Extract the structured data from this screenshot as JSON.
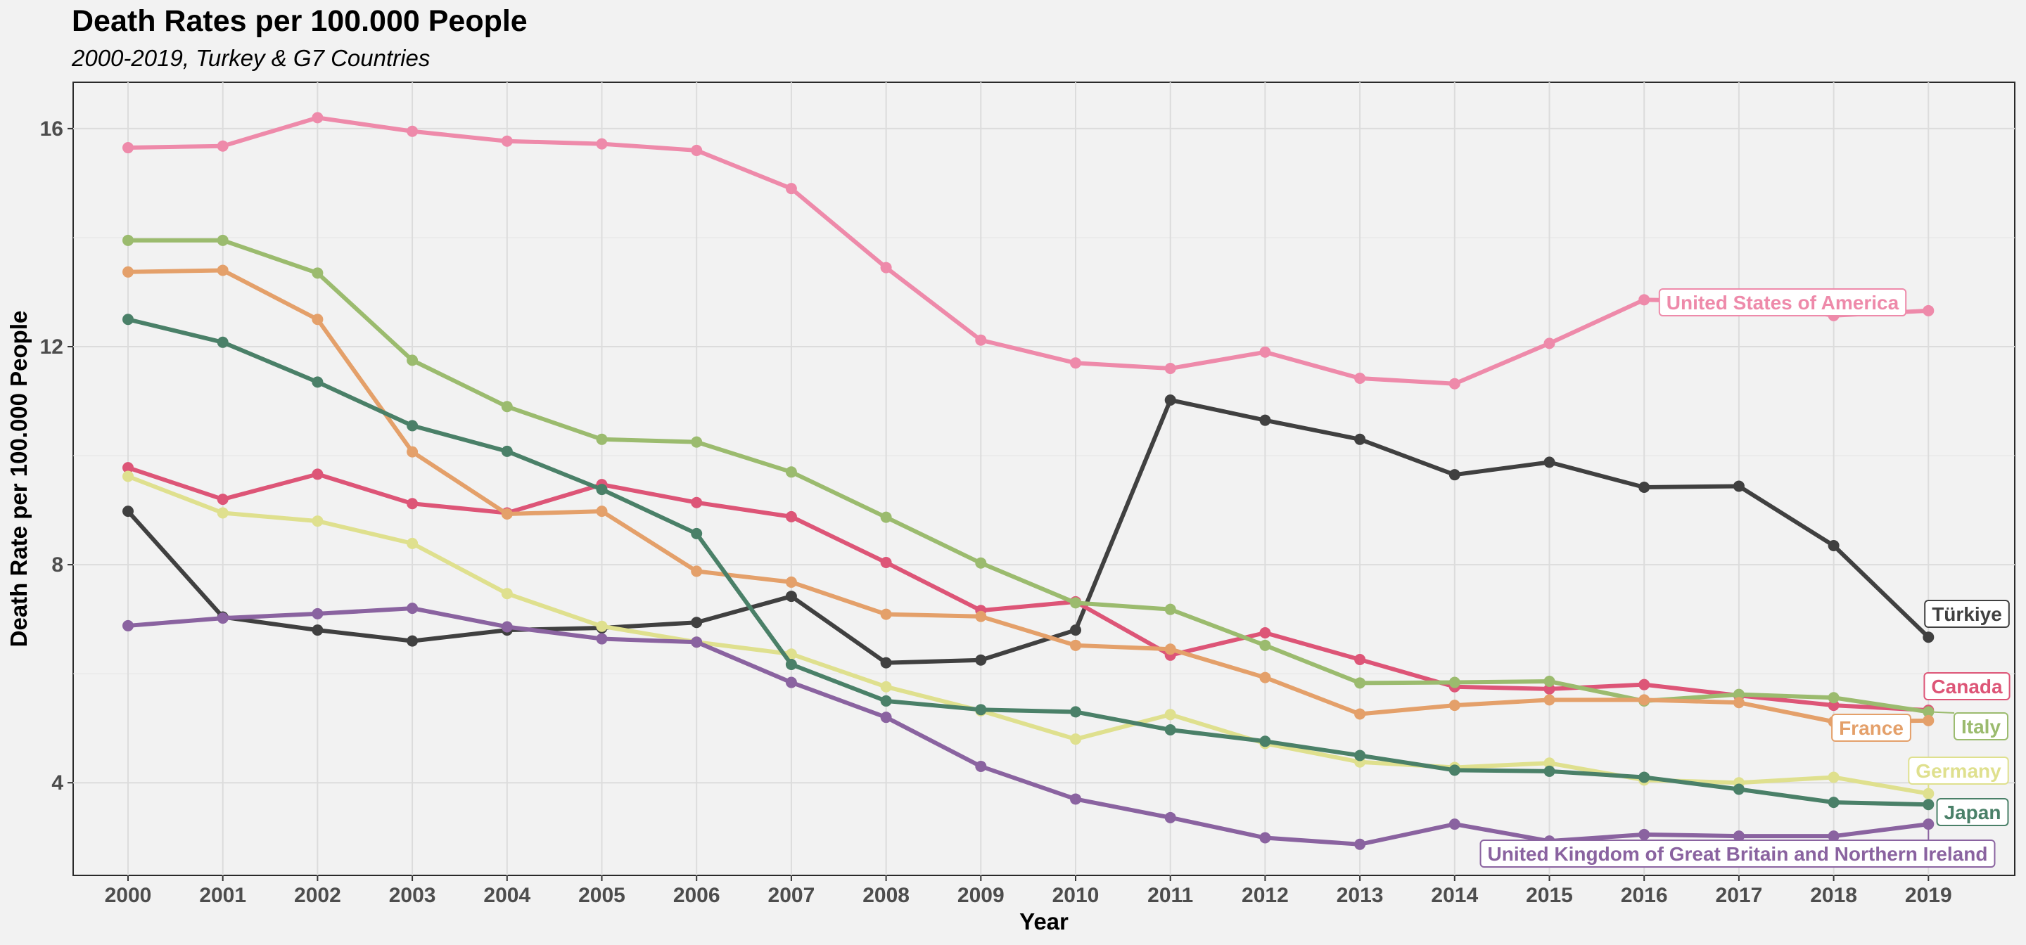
{
  "chart_data": {
    "type": "line",
    "title": "Death Rates per 100.000 People",
    "subtitle": "2000-2019, Turkey & G7 Countries",
    "xlabel": "Year",
    "ylabel": "Death Rate per 100.000 People",
    "x": [
      2000,
      2001,
      2002,
      2003,
      2004,
      2005,
      2006,
      2007,
      2008,
      2009,
      2010,
      2011,
      2012,
      2013,
      2014,
      2015,
      2016,
      2017,
      2018,
      2019
    ],
    "xticks": [
      "2000",
      "2001",
      "2002",
      "2003",
      "2004",
      "2005",
      "2006",
      "2007",
      "2008",
      "2009",
      "2010",
      "2011",
      "2012",
      "2013",
      "2014",
      "2015",
      "2016",
      "2017",
      "2018",
      "2019"
    ],
    "yticks": [
      4,
      8,
      12,
      16
    ],
    "ytick_labels": [
      "4",
      "8",
      "12",
      "16"
    ],
    "ylim": [
      2.3,
      16.85
    ],
    "grid": true,
    "legend": "direct labels at series ends",
    "series": [
      {
        "name": "United States of America",
        "color": "#ee8aaa",
        "values": [
          15.65,
          15.68,
          16.2,
          15.95,
          15.77,
          15.72,
          15.6,
          14.9,
          13.45,
          12.12,
          11.7,
          11.6,
          11.9,
          11.42,
          11.32,
          12.06,
          12.86,
          12.83,
          12.57,
          12.66
        ]
      },
      {
        "name": "Türkiye",
        "color": "#404040",
        "values": [
          8.98,
          7.04,
          6.8,
          6.6,
          6.8,
          6.84,
          6.94,
          7.42,
          6.2,
          6.25,
          6.8,
          11.02,
          10.65,
          10.3,
          9.65,
          9.88,
          9.42,
          9.44,
          8.35,
          6.67
        ]
      },
      {
        "name": "Canada",
        "color": "#dd5577",
        "values": [
          9.78,
          9.2,
          9.66,
          9.12,
          8.95,
          9.47,
          9.14,
          8.88,
          8.04,
          7.16,
          7.32,
          6.34,
          6.75,
          6.26,
          5.76,
          5.72,
          5.8,
          5.6,
          5.42,
          5.33
        ]
      },
      {
        "name": "Italy",
        "color": "#9bbb6e",
        "values": [
          13.95,
          13.95,
          13.35,
          11.75,
          10.9,
          10.3,
          10.25,
          9.7,
          8.87,
          8.03,
          7.3,
          7.18,
          6.52,
          5.83,
          5.84,
          5.86,
          5.5,
          5.62,
          5.56,
          5.3
        ]
      },
      {
        "name": "France",
        "color": "#e4a06a",
        "values": [
          13.37,
          13.4,
          12.5,
          10.07,
          8.93,
          8.98,
          7.88,
          7.68,
          7.09,
          7.05,
          6.52,
          6.45,
          5.93,
          5.26,
          5.42,
          5.52,
          5.52,
          5.47,
          5.12,
          5.14
        ]
      },
      {
        "name": "Germany",
        "color": "#dfe08e",
        "values": [
          9.62,
          8.95,
          8.8,
          8.39,
          7.47,
          6.87,
          6.58,
          6.36,
          5.76,
          5.32,
          4.8,
          5.25,
          4.72,
          4.38,
          4.28,
          4.36,
          4.05,
          4.0,
          4.1,
          3.8
        ]
      },
      {
        "name": "Japan",
        "color": "#4a8068",
        "values": [
          12.5,
          12.08,
          11.35,
          10.55,
          10.08,
          9.38,
          8.57,
          6.17,
          5.5,
          5.34,
          5.3,
          4.97,
          4.76,
          4.5,
          4.23,
          4.21,
          4.1,
          3.88,
          3.64,
          3.6
        ]
      },
      {
        "name": "United Kingdom of Great Britain and Northern Ireland",
        "color": "#8a63a0",
        "values": [
          6.88,
          7.02,
          7.1,
          7.2,
          6.86,
          6.64,
          6.58,
          5.84,
          5.2,
          4.3,
          3.7,
          3.36,
          2.99,
          2.87,
          3.24,
          2.93,
          3.05,
          3.02,
          3.02,
          3.24
        ]
      }
    ]
  }
}
